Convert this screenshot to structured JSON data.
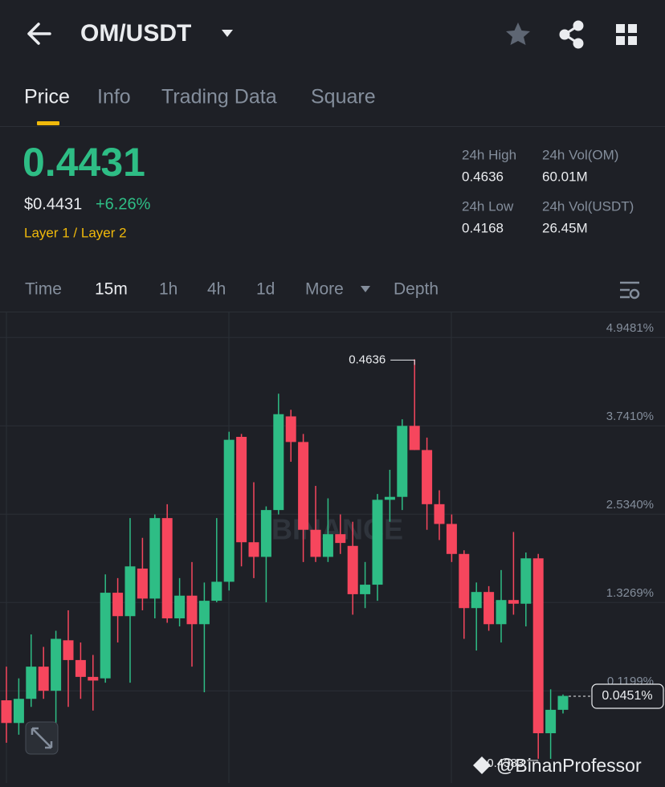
{
  "header": {
    "title": "OM/USDT"
  },
  "tabs": [
    "Price",
    "Info",
    "Trading Data",
    "Square"
  ],
  "ticker": {
    "price": "0.4431",
    "usd_price": "$0.4431",
    "change": "+6.26%",
    "tags": "Layer 1 / Layer 2",
    "stats": [
      {
        "label": "24h High",
        "value": "0.4636"
      },
      {
        "label": "24h Vol(OM)",
        "value": "60.01M"
      },
      {
        "label": "24h Low",
        "value": "0.4168"
      },
      {
        "label": "24h Vol(USDT)",
        "value": "26.45M"
      }
    ]
  },
  "intervals": [
    "Time",
    "15m",
    "1h",
    "4h",
    "1d",
    "More",
    "Depth"
  ],
  "chart_data": {
    "type": "candlestick",
    "categories": [
      null,
      null,
      null,
      null,
      null,
      null,
      null,
      null,
      null,
      null,
      null,
      null,
      null,
      null,
      null,
      null,
      null,
      null,
      null,
      null,
      null,
      null,
      null,
      null,
      null,
      null,
      null,
      null,
      null,
      null,
      null,
      null,
      null,
      null,
      null,
      null,
      null,
      null,
      null,
      null,
      null,
      null,
      null,
      null,
      null,
      null
    ],
    "open": [
      -0.01,
      -0.32,
      0.01,
      0.45,
      0.12,
      0.81,
      0.54,
      0.31,
      0.29,
      1.46,
      1.14,
      1.79,
      1.38,
      2.48,
      1.11,
      1.42,
      1.03,
      1.35,
      1.61,
      3.59,
      2.15,
      1.95,
      2.59,
      3.87,
      3.52,
      2.32,
      1.95,
      2.26,
      2.1,
      1.44,
      1.57,
      2.73,
      2.77,
      3.74,
      3.41,
      2.67,
      2.4,
      1.99,
      1.25,
      1.47,
      1.03,
      1.36,
      1.31,
      1.93,
      -0.46,
      -0.14
    ],
    "high": [
      0.45,
      0.29,
      0.89,
      0.72,
      0.94,
      1.22,
      0.78,
      0.61,
      1.71,
      1.66,
      2.48,
      2.21,
      2.53,
      2.67,
      1.66,
      1.88,
      1.6,
      2.48,
      3.66,
      3.63,
      2.97,
      2.64,
      4.18,
      3.96,
      3.63,
      2.92,
      2.75,
      2.53,
      2.43,
      1.88,
      2.81,
      3.14,
      3.83,
      4.65,
      3.58,
      2.86,
      2.53,
      2.04,
      1.6,
      1.55,
      1.77,
      2.29,
      2.01,
      1.99,
      0.14,
      0.07
    ],
    "low": [
      -0.59,
      -0.48,
      -0.1,
      0.01,
      -0.32,
      -0.1,
      0.01,
      -0.15,
      0.23,
      0.78,
      0.23,
      1.22,
      1.11,
      1.05,
      1.0,
      0.45,
      0.1,
      1.33,
      1.49,
      1.82,
      1.66,
      1.33,
      2.53,
      3.25,
      1.88,
      1.88,
      1.88,
      1.99,
      1.16,
      1.25,
      1.35,
      2.43,
      2.59,
      3.41,
      2.32,
      2.18,
      1.88,
      0.83,
      0.67,
      0.94,
      0.78,
      1.16,
      1.0,
      -0.81,
      -0.81,
      -0.19
    ],
    "close": [
      -0.32,
      0.01,
      0.45,
      0.12,
      0.83,
      0.54,
      0.31,
      0.26,
      1.46,
      1.14,
      1.82,
      1.38,
      2.48,
      1.11,
      1.42,
      1.03,
      1.35,
      1.61,
      3.55,
      2.15,
      1.95,
      2.59,
      3.9,
      3.52,
      2.32,
      1.95,
      2.26,
      2.14,
      1.44,
      1.57,
      2.73,
      2.77,
      3.74,
      3.41,
      2.67,
      2.4,
      1.99,
      1.25,
      1.47,
      1.03,
      1.36,
      1.31,
      1.93,
      -0.46,
      -0.14,
      0.05
    ],
    "up_color": "#2ebd85",
    "down_color": "#f6465d",
    "ylim": [
      -1.14,
      5.28
    ],
    "yticks": [
      {
        "value": 0.1199,
        "label": "0.1199%"
      },
      {
        "value": 1.3269,
        "label": "1.3269%"
      },
      {
        "value": 2.534,
        "label": "2.5340%"
      },
      {
        "value": 3.741,
        "label": "3.7410%"
      },
      {
        "value": 4.9481,
        "label": "4.9481%"
      }
    ],
    "grid": true,
    "current": {
      "value": 0.0451,
      "label": "0.0451%"
    },
    "annotations": [
      {
        "text": "0.4636"
      },
      {
        "text": "0.4383"
      }
    ],
    "watermark": "BINANCE",
    "credit": "@BinanProfessor"
  }
}
